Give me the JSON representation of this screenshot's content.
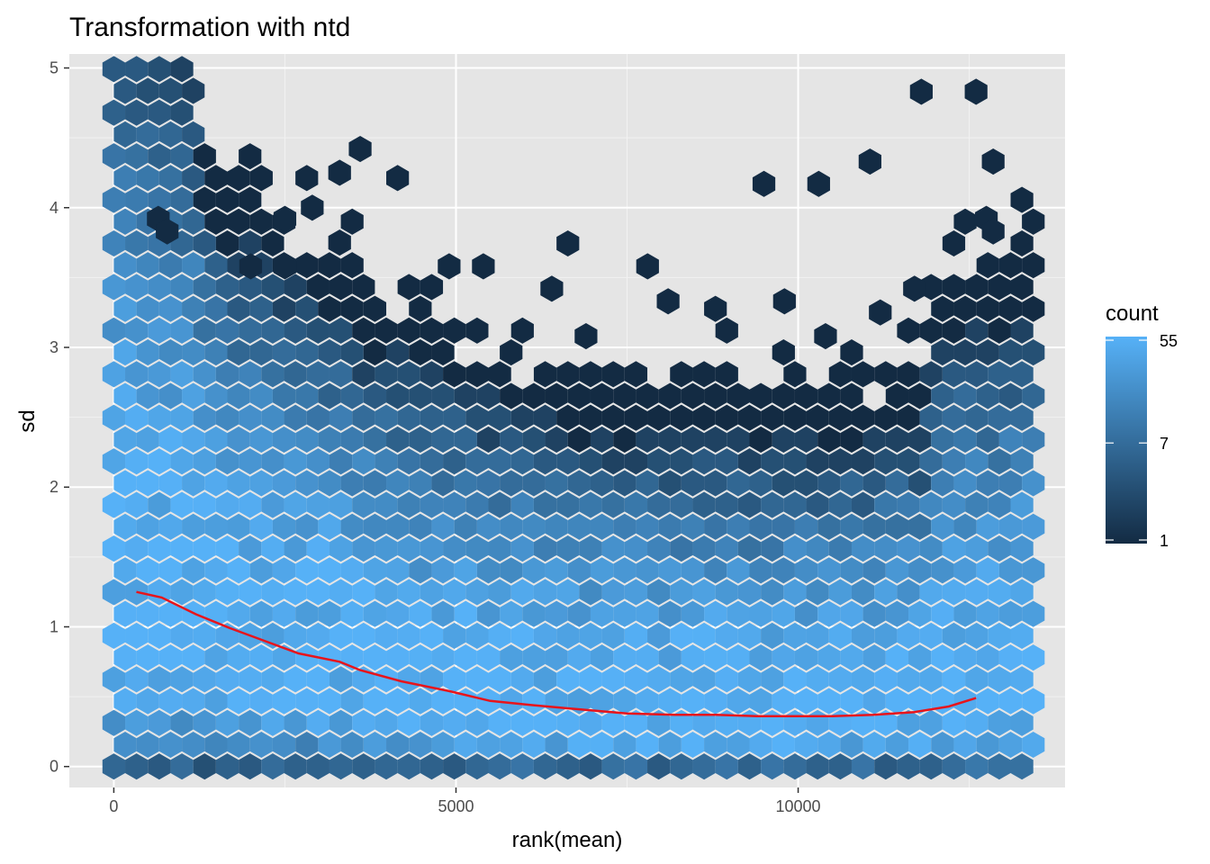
{
  "chart_data": {
    "type": "heatmap",
    "subtype": "hexbin with smoothed running median line",
    "title": "Transformation with ntd",
    "xlabel": "rank(mean)",
    "ylabel": "sd",
    "xlim": [
      -650,
      13900
    ],
    "ylim": [
      -0.15,
      5.1
    ],
    "x_ticks": [
      0,
      5000,
      10000
    ],
    "x_tick_labels": [
      "0",
      "5000",
      "10000"
    ],
    "y_ticks": [
      0,
      1,
      2,
      3,
      4,
      5
    ],
    "y_tick_labels": [
      "0",
      "1",
      "2",
      "3",
      "4",
      "5"
    ],
    "grid": true,
    "background": "#e5e5e5",
    "legend": {
      "title": "count",
      "position": "right",
      "scale": "log",
      "breaks": [
        1,
        7,
        55
      ],
      "break_labels": [
        "1",
        "7",
        "55"
      ],
      "low_color": "#132b43",
      "high_color": "#56b1f7"
    },
    "line_color": "#e8141b",
    "trend_line": {
      "x": [
        330,
        700,
        1200,
        1700,
        2200,
        2700,
        3300,
        3600,
        4200,
        4900,
        5500,
        6100,
        6800,
        7500,
        8200,
        8800,
        9400,
        10000,
        10500,
        11100,
        11700,
        12200,
        12600
      ],
      "y": [
        1.25,
        1.21,
        1.09,
        0.99,
        0.9,
        0.81,
        0.75,
        0.69,
        0.61,
        0.54,
        0.47,
        0.44,
        0.41,
        0.38,
        0.37,
        0.37,
        0.36,
        0.36,
        0.36,
        0.37,
        0.39,
        0.43,
        0.49
      ]
    },
    "hexbin_summary": "approximately 13300 genes binned into hexagons; dense band with counts up to 55 concentrated at low sd (0.2-1.3), sparse single-gene bins extending to sd of about 4.8",
    "outlier_points": [
      {
        "x": 3600,
        "y": 4.42
      },
      {
        "x": 3300,
        "y": 4.25
      },
      {
        "x": 2900,
        "y": 4.0
      },
      {
        "x": 2500,
        "y": 3.92
      },
      {
        "x": 650,
        "y": 3.92
      },
      {
        "x": 780,
        "y": 3.83
      },
      {
        "x": 3300,
        "y": 3.75
      },
      {
        "x": 11800,
        "y": 4.83
      },
      {
        "x": 12600,
        "y": 4.83
      },
      {
        "x": 12850,
        "y": 4.33
      },
      {
        "x": 11050,
        "y": 4.33
      },
      {
        "x": 9500,
        "y": 4.17
      },
      {
        "x": 10300,
        "y": 4.17
      },
      {
        "x": 12750,
        "y": 3.92
      },
      {
        "x": 12850,
        "y": 3.83
      },
      {
        "x": 7800,
        "y": 3.58
      },
      {
        "x": 9800,
        "y": 3.33
      },
      {
        "x": 8100,
        "y": 3.33
      },
      {
        "x": 5400,
        "y": 3.58
      },
      {
        "x": 4900,
        "y": 3.58
      },
      {
        "x": 2500,
        "y": 3.58
      },
      {
        "x": 2000,
        "y": 3.58
      },
      {
        "x": 6400,
        "y": 3.42
      },
      {
        "x": 11700,
        "y": 3.42
      },
      {
        "x": 6900,
        "y": 3.08
      },
      {
        "x": 10400,
        "y": 3.08
      },
      {
        "x": 11200,
        "y": 3.25
      }
    ]
  }
}
